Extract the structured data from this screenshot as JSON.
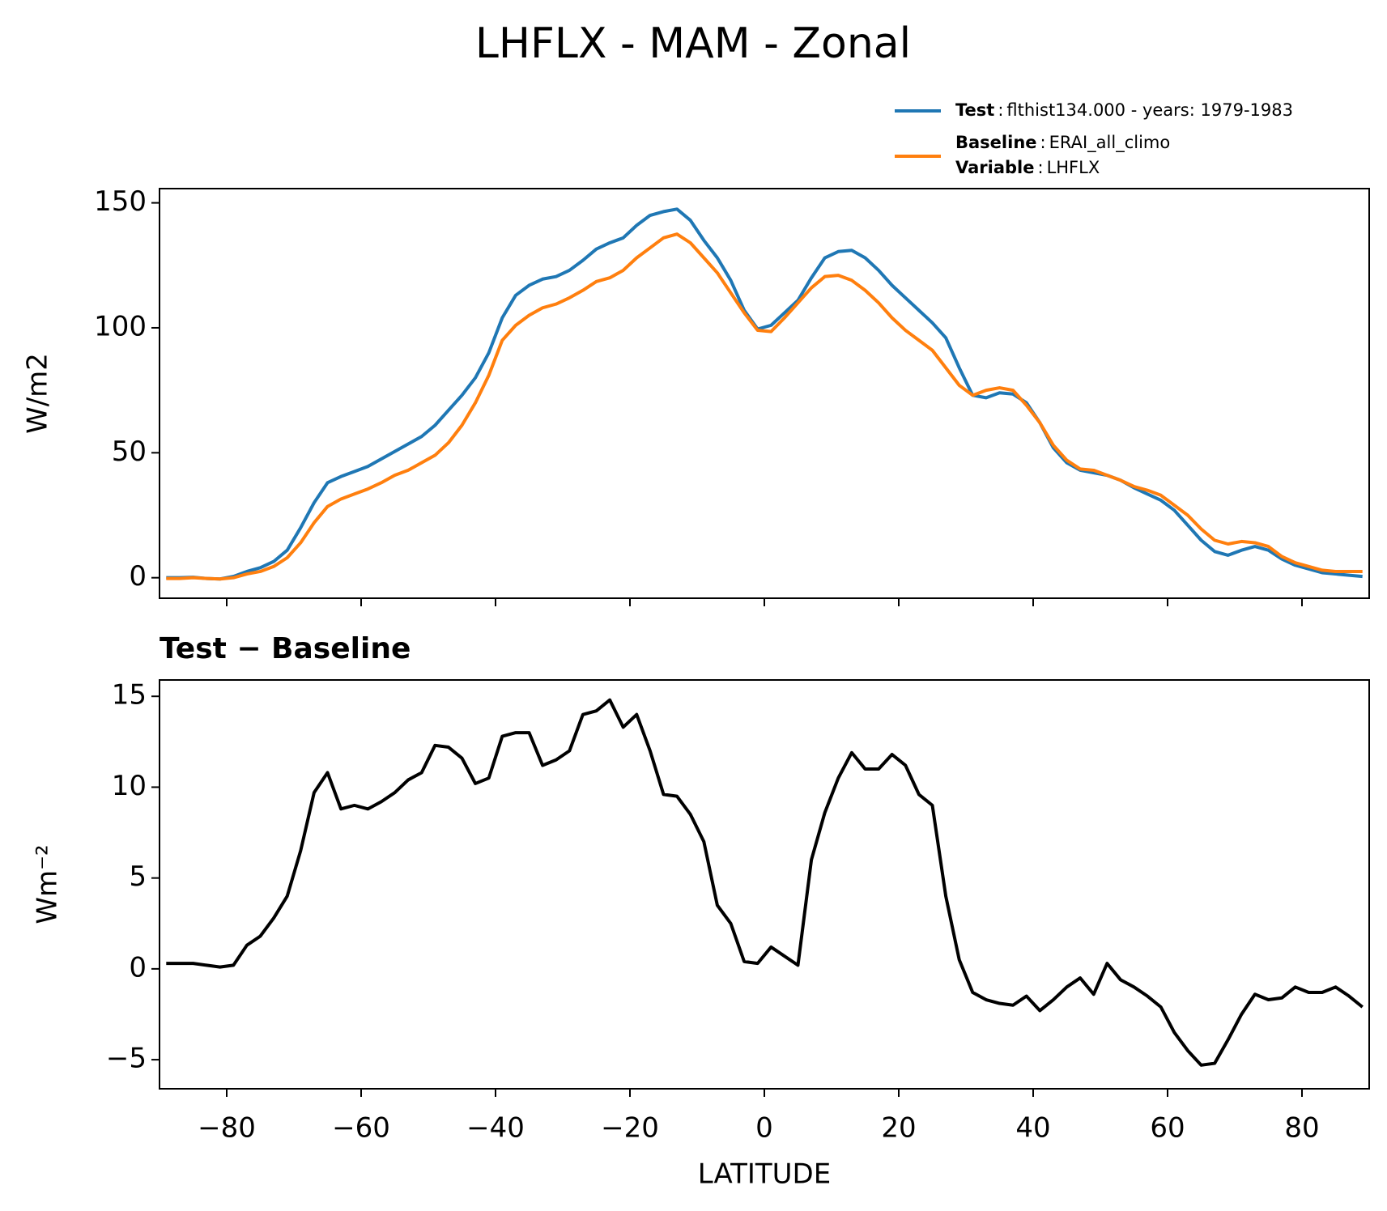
{
  "title": "LHFLX - MAM - Zonal",
  "legend": {
    "separator": ":",
    "variable_label": "Variable",
    "variable": "LHFLX"
  },
  "chart_data": [
    {
      "type": "line",
      "ylabel": "W/m2",
      "x": [
        -89,
        -87,
        -85,
        -83,
        -81,
        -79,
        -77,
        -75,
        -73,
        -71,
        -69,
        -67,
        -65,
        -63,
        -61,
        -59,
        -57,
        -55,
        -53,
        -51,
        -49,
        -47,
        -45,
        -43,
        -41,
        -39,
        -37,
        -35,
        -33,
        -31,
        -29,
        -27,
        -25,
        -23,
        -21,
        -19,
        -17,
        -15,
        -13,
        -11,
        -9,
        -7,
        -5,
        -3,
        -1,
        1,
        3,
        5,
        7,
        9,
        11,
        13,
        15,
        17,
        19,
        21,
        23,
        25,
        27,
        29,
        31,
        33,
        35,
        37,
        39,
        41,
        43,
        45,
        47,
        49,
        51,
        53,
        55,
        57,
        59,
        61,
        63,
        65,
        67,
        69,
        71,
        73,
        75,
        77,
        79,
        81,
        83,
        85,
        87,
        89
      ],
      "series": [
        {
          "name": "Test",
          "description": "flthist134.000 - years: 1979-1983",
          "color": "#1f77b4",
          "values": [
            0,
            0,
            0.2,
            -0.3,
            -0.5,
            0.5,
            2.5,
            4,
            6.5,
            11,
            20,
            30,
            38,
            40.5,
            42.5,
            44.5,
            47.5,
            50.5,
            53.5,
            56.5,
            61,
            67,
            73,
            80,
            90,
            104,
            113,
            117,
            119.5,
            120.5,
            123,
            127,
            131.5,
            134,
            136,
            141,
            145,
            146.5,
            147.5,
            143,
            135,
            128,
            119,
            107,
            99.5,
            101,
            106,
            111,
            120,
            128,
            130.5,
            131,
            128,
            123,
            117,
            112,
            107,
            102,
            96,
            84,
            73,
            72,
            74,
            73.5,
            70,
            62,
            52,
            46,
            43,
            42,
            41,
            39,
            36,
            33.5,
            31,
            27,
            21,
            15,
            10.5,
            9,
            11,
            12.5,
            11,
            7.5,
            5,
            3.5,
            2,
            1.5,
            1,
            0.5
          ]
        },
        {
          "name": "Baseline",
          "description": "ERAI_all_climo",
          "color": "#ff7f0e",
          "values": [
            -0.3,
            -0.3,
            0,
            -0.3,
            -0.5,
            0,
            1.5,
            2.5,
            4.5,
            8,
            14,
            22,
            28.5,
            31.5,
            33.5,
            35.5,
            38,
            41,
            43,
            46,
            49,
            54,
            61,
            70,
            81,
            95,
            101,
            105,
            108,
            109.5,
            112,
            115,
            118.5,
            120,
            123,
            128,
            132,
            136,
            137.5,
            134,
            128,
            122,
            114,
            106,
            99,
            98.5,
            104,
            110,
            116,
            120.5,
            121,
            119,
            115,
            110,
            104,
            99,
            95,
            91,
            84,
            77,
            73,
            75,
            76,
            75,
            69,
            62,
            53,
            47,
            43.5,
            43,
            41,
            39,
            36.5,
            35,
            33,
            29,
            25,
            19.5,
            15,
            13.5,
            14.5,
            14,
            12.5,
            8.5,
            6,
            4.5,
            3,
            2.5,
            2.5,
            2.5
          ]
        }
      ],
      "xlim": [
        -90,
        90
      ],
      "xticks": [
        -80,
        -60,
        -40,
        -20,
        0,
        20,
        40,
        60,
        80
      ],
      "ylim": [
        -8.2,
        155.7
      ],
      "yticks": [
        0,
        50,
        100,
        150
      ]
    },
    {
      "type": "line",
      "title": "Test − Baseline",
      "ylabel": "Wm⁻²",
      "xlabel": "LATITUDE",
      "x": [
        -89,
        -87,
        -85,
        -83,
        -81,
        -79,
        -77,
        -75,
        -73,
        -71,
        -69,
        -67,
        -65,
        -63,
        -61,
        -59,
        -57,
        -55,
        -53,
        -51,
        -49,
        -47,
        -45,
        -43,
        -41,
        -39,
        -37,
        -35,
        -33,
        -31,
        -29,
        -27,
        -25,
        -23,
        -21,
        -19,
        -17,
        -15,
        -13,
        -11,
        -9,
        -7,
        -5,
        -3,
        -1,
        1,
        3,
        5,
        7,
        9,
        11,
        13,
        15,
        17,
        19,
        21,
        23,
        25,
        27,
        29,
        31,
        33,
        35,
        37,
        39,
        41,
        43,
        45,
        47,
        49,
        51,
        53,
        55,
        57,
        59,
        61,
        63,
        65,
        67,
        69,
        71,
        73,
        75,
        77,
        79,
        81,
        83,
        85,
        87,
        89
      ],
      "series": [
        {
          "color": "#000000",
          "values": [
            0.3,
            0.3,
            0.3,
            0.2,
            0.1,
            0.2,
            1.3,
            1.8,
            2.8,
            4,
            6.5,
            9.7,
            10.8,
            8.8,
            9,
            8.8,
            9.2,
            9.7,
            10.4,
            10.8,
            12.3,
            12.2,
            11.6,
            10.2,
            10.5,
            12.8,
            13,
            13,
            11.2,
            11.5,
            12,
            14,
            14.2,
            14.8,
            13.3,
            14,
            12,
            9.6,
            9.5,
            8.5,
            7,
            3.5,
            2.5,
            0.4,
            0.3,
            1.2,
            0.7,
            0.2,
            6,
            8.6,
            10.5,
            11.9,
            11,
            11,
            11.8,
            11.2,
            9.6,
            9,
            4,
            0.5,
            -1.3,
            -1.7,
            -1.9,
            -2,
            -1.5,
            -2.3,
            -1.7,
            -1.0,
            -0.5,
            -1.4,
            0.3,
            -0.6,
            -1.0,
            -1.5,
            -2.1,
            -3.5,
            -4.5,
            -5.3,
            -5.2,
            -3.9,
            -2.5,
            -1.4,
            -1.7,
            -1.6,
            -1.0,
            -1.3,
            -1.3,
            -1.0,
            -1.5,
            -2.1
          ]
        }
      ],
      "xlim": [
        -90,
        90
      ],
      "xticks": [
        {
          "value": -80,
          "label": "−80"
        },
        {
          "value": -60,
          "label": "−60"
        },
        {
          "value": -40,
          "label": "−40"
        },
        {
          "value": -20,
          "label": "−20"
        },
        0,
        20,
        40,
        60,
        80
      ],
      "ylim": [
        -6.6,
        15.9
      ],
      "yticks": [
        {
          "value": -5,
          "label": "−5"
        },
        0,
        5,
        10,
        15
      ]
    }
  ]
}
